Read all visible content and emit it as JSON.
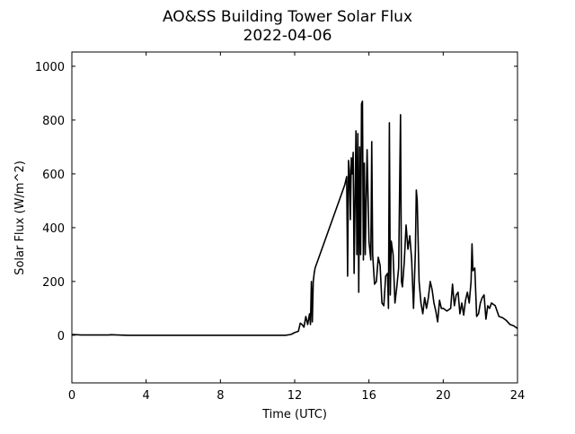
{
  "chart_data": {
    "type": "line",
    "title": "AO&SS Building Tower Solar Flux",
    "subtitle": "2022-04-06",
    "x_label": "Time (UTC)",
    "y_label": "Solar Flux (W/m^2)",
    "color": "#000000",
    "xlim": [
      0,
      24
    ],
    "xticks": [
      0,
      4,
      8,
      12,
      16,
      20,
      24
    ],
    "ylim": [
      -177,
      1053
    ],
    "yticks": [
      0,
      200,
      400,
      600,
      800,
      1000
    ],
    "x": [
      0,
      0.5,
      2,
      2.1,
      3,
      11.5,
      11.8,
      12,
      12.2,
      12.3,
      12.4,
      12.5,
      12.6,
      12.7,
      12.8,
      12.85,
      12.9,
      12.95,
      13.0,
      13.05,
      13.1,
      14.6,
      14.7,
      14.8,
      14.85,
      14.9,
      14.95,
      15.0,
      15.05,
      15.1,
      15.15,
      15.2,
      15.3,
      15.35,
      15.4,
      15.45,
      15.5,
      15.55,
      15.6,
      15.65,
      15.7,
      15.75,
      15.8,
      15.9,
      16.0,
      16.1,
      16.15,
      16.2,
      16.3,
      16.4,
      16.5,
      16.6,
      16.7,
      16.8,
      16.9,
      17.0,
      17.05,
      17.1,
      17.15,
      17.2,
      17.3,
      17.4,
      17.5,
      17.6,
      17.7,
      17.75,
      17.8,
      17.9,
      18.0,
      18.1,
      18.2,
      18.3,
      18.4,
      18.5,
      18.55,
      18.6,
      18.7,
      18.8,
      18.9,
      19.0,
      19.1,
      19.2,
      19.3,
      19.4,
      19.5,
      19.6,
      19.7,
      19.8,
      19.9,
      20.0,
      20.2,
      20.4,
      20.5,
      20.6,
      20.7,
      20.8,
      20.9,
      21.0,
      21.1,
      21.2,
      21.3,
      21.4,
      21.5,
      21.55,
      21.6,
      21.7,
      21.8,
      21.9,
      22.0,
      22.1,
      22.2,
      22.3,
      22.4,
      22.5,
      22.6,
      22.8,
      23.0,
      23.2,
      23.4,
      23.6,
      23.8,
      24
    ],
    "values": [
      3,
      1,
      1,
      2,
      0,
      0,
      3,
      10,
      15,
      45,
      40,
      30,
      70,
      40,
      80,
      40,
      200,
      50,
      200,
      230,
      250,
      540,
      560,
      590,
      220,
      650,
      610,
      430,
      660,
      600,
      680,
      230,
      760,
      300,
      750,
      160,
      700,
      300,
      860,
      870,
      280,
      640,
      300,
      690,
      350,
      280,
      720,
      300,
      190,
      200,
      290,
      260,
      120,
      110,
      220,
      230,
      100,
      790,
      150,
      350,
      300,
      120,
      180,
      250,
      820,
      200,
      180,
      270,
      410,
      320,
      370,
      280,
      100,
      310,
      540,
      500,
      200,
      120,
      80,
      140,
      100,
      140,
      200,
      170,
      120,
      90,
      50,
      130,
      100,
      100,
      90,
      100,
      190,
      110,
      150,
      160,
      80,
      120,
      75,
      130,
      160,
      120,
      200,
      340,
      240,
      250,
      70,
      80,
      120,
      140,
      150,
      60,
      110,
      100,
      120,
      110,
      70,
      65,
      55,
      40,
      35,
      25
    ]
  }
}
